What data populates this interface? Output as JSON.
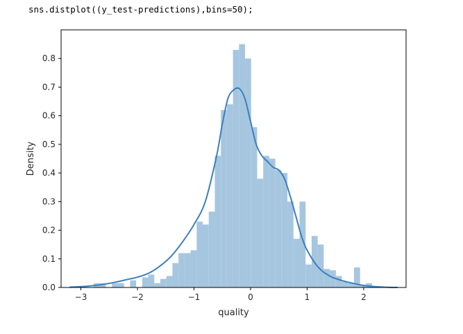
{
  "code": "sns.distplot((y_test-predictions),bins=50);",
  "colors": {
    "bars": "#a6c6e0",
    "kde": "#3a7fbd",
    "axis": "#000000"
  },
  "chart_data": {
    "type": "bar",
    "xlabel": "quality",
    "ylabel": "Density",
    "xlim": [
      -3.35,
      2.75
    ],
    "ylim": [
      0,
      0.9
    ],
    "xticks": [
      -3,
      -2,
      -1,
      0,
      1,
      2
    ],
    "xtick_labels": [
      "−3",
      "−2",
      "−1",
      "0",
      "1",
      "2"
    ],
    "yticks": [
      0.0,
      0.1,
      0.2,
      0.3,
      0.4,
      0.5,
      0.6,
      0.7,
      0.8
    ],
    "ytick_labels": [
      "0.0",
      "0.1",
      "0.2",
      "0.3",
      "0.4",
      "0.5",
      "0.6",
      "0.7",
      "0.8"
    ],
    "histogram": {
      "bins": 50,
      "range": [
        -3.2,
        2.15
      ],
      "densities": [
        0.0,
        0.0,
        0.0,
        0.0,
        0.015,
        0.015,
        0.0,
        0.015,
        0.015,
        0.0,
        0.025,
        0.0,
        0.035,
        0.045,
        0.015,
        0.03,
        0.04,
        0.085,
        0.12,
        0.12,
        0.13,
        0.23,
        0.22,
        0.265,
        0.46,
        0.62,
        0.64,
        0.83,
        0.85,
        0.8,
        0.56,
        0.38,
        0.46,
        0.45,
        0.41,
        0.4,
        0.3,
        0.17,
        0.3,
        0.08,
        0.18,
        0.15,
        0.065,
        0.06,
        0.04,
        0.02,
        0.015,
        0.07,
        0.01,
        0.015
      ]
    },
    "kde": {
      "x": [
        -3.2,
        -3.0,
        -2.8,
        -2.6,
        -2.4,
        -2.2,
        -2.0,
        -1.8,
        -1.6,
        -1.4,
        -1.2,
        -1.0,
        -0.8,
        -0.6,
        -0.5,
        -0.4,
        -0.3,
        -0.2,
        -0.1,
        0.0,
        0.1,
        0.2,
        0.3,
        0.4,
        0.5,
        0.6,
        0.7,
        0.8,
        0.9,
        1.0,
        1.2,
        1.4,
        1.6,
        1.8,
        2.0,
        2.2,
        2.4,
        2.6
      ],
      "y": [
        0.001,
        0.003,
        0.006,
        0.011,
        0.018,
        0.027,
        0.036,
        0.05,
        0.075,
        0.11,
        0.16,
        0.22,
        0.3,
        0.46,
        0.57,
        0.66,
        0.69,
        0.695,
        0.66,
        0.58,
        0.5,
        0.46,
        0.44,
        0.42,
        0.41,
        0.38,
        0.32,
        0.25,
        0.18,
        0.13,
        0.07,
        0.04,
        0.025,
        0.015,
        0.007,
        0.003,
        0.001,
        0.0
      ]
    }
  }
}
